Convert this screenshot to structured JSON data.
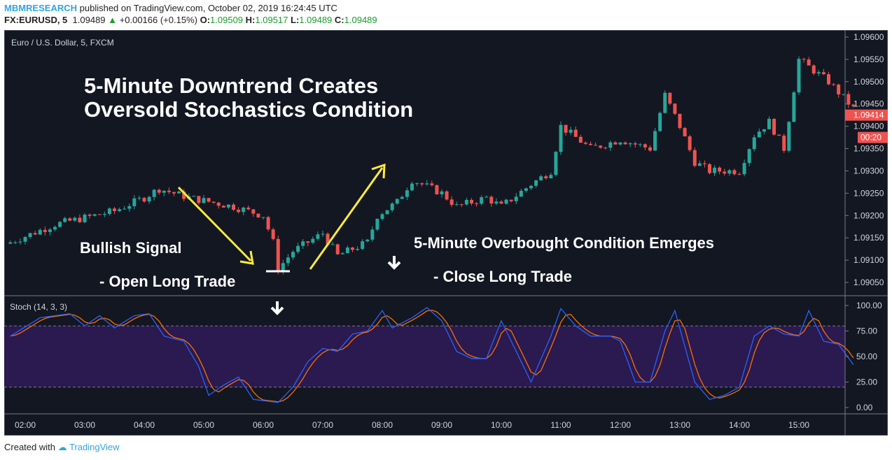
{
  "header": {
    "author": "MBMRESEARCH",
    "published": "published on TradingView.com, October 02, 2019 16:24:45 UTC",
    "symbol": "FX:EURUSD, 5",
    "last": "1.09489",
    "change": "+0.00166 (+0.15%)",
    "o_label": "O:",
    "o": "1.09509",
    "h_label": "H:",
    "h": "1.09517",
    "l_label": "L:",
    "l": "1.09489",
    "c_label": "C:",
    "c": "1.09489"
  },
  "pane_title": "Euro / U.S. Dollar, 5, FXCM",
  "stoch_title": "Stoch (14, 3, 3)",
  "annotations": {
    "title1": "5-Minute Downtrend Creates",
    "title2": "Oversold Stochastics Condition",
    "bullish": "Bullish Signal",
    "open": "- Open Long Trade",
    "overbought": "5-Minute Overbought Condition Emerges",
    "close": "- Close Long Trade"
  },
  "price_badge": "1.09414",
  "countdown": "00:20",
  "colors": {
    "up": "#26a69a",
    "down": "#ef5350",
    "k": "#2962ff",
    "d": "#ff6d00",
    "band": "#2a1a4f",
    "bg": "#131722",
    "arrow": "#ffeb3b"
  },
  "footer": {
    "created": "Created with",
    "brand": "TradingView"
  },
  "chart_data": [
    {
      "type": "candlestick",
      "price_ticks": [
        "1.09600",
        "1.09550",
        "1.09500",
        "1.09450",
        "1.09400",
        "1.09350",
        "1.09300",
        "1.09250",
        "1.09200",
        "1.09150",
        "1.09100",
        "1.09050"
      ],
      "ylim": [
        1.0902,
        1.0962
      ],
      "time_ticks": [
        "02:00",
        "03:00",
        "04:00",
        "05:00",
        "06:00",
        "07:00",
        "08:00",
        "09:00",
        "10:00",
        "11:00",
        "12:00",
        "13:00",
        "14:00",
        "15:00"
      ],
      "close_path": [
        [
          "01:45",
          1.0914
        ],
        [
          "02:30",
          1.0918
        ],
        [
          "03:30",
          1.0921
        ],
        [
          "04:00",
          1.0924
        ],
        [
          "04:15",
          1.0926
        ],
        [
          "04:45",
          1.0924
        ],
        [
          "05:30",
          1.0922
        ],
        [
          "06:00",
          1.092
        ],
        [
          "06:10",
          1.0914
        ],
        [
          "06:15",
          1.0908
        ],
        [
          "06:30",
          1.0912
        ],
        [
          "07:00",
          1.0916
        ],
        [
          "07:15",
          1.0911
        ],
        [
          "07:45",
          1.0914
        ],
        [
          "07:55",
          1.092
        ],
        [
          "08:15",
          1.0923
        ],
        [
          "08:30",
          1.0928
        ],
        [
          "09:00",
          1.0925
        ],
        [
          "09:15",
          1.0922
        ],
        [
          "09:45",
          1.0924
        ],
        [
          "10:00",
          1.0922
        ],
        [
          "10:30",
          1.0927
        ],
        [
          "10:50",
          1.093
        ],
        [
          "11:00",
          1.094
        ],
        [
          "11:30",
          1.0935
        ],
        [
          "12:00",
          1.0937
        ],
        [
          "12:30",
          1.0935
        ],
        [
          "12:45",
          1.0947
        ],
        [
          "13:00",
          1.094
        ],
        [
          "13:15",
          1.0932
        ],
        [
          "13:30",
          1.093
        ],
        [
          "14:00",
          1.093
        ],
        [
          "14:15",
          1.0938
        ],
        [
          "14:30",
          1.0941
        ],
        [
          "14:45",
          1.0935
        ],
        [
          "15:00",
          1.0955
        ],
        [
          "15:30",
          1.095
        ],
        [
          "15:55",
          1.0944
        ]
      ]
    },
    {
      "type": "line",
      "title": "Stoch (14, 3, 3)",
      "y_ticks": [
        "100.00",
        "75.00",
        "50.00",
        "25.00",
        "0.00"
      ],
      "ylim": [
        0,
        100
      ],
      "bands": [
        20,
        80
      ],
      "k_path": [
        [
          "01:45",
          70
        ],
        [
          "02:15",
          88
        ],
        [
          "02:45",
          92
        ],
        [
          "03:00",
          80
        ],
        [
          "03:15",
          90
        ],
        [
          "03:30",
          78
        ],
        [
          "03:50",
          90
        ],
        [
          "04:05",
          92
        ],
        [
          "04:20",
          70
        ],
        [
          "04:40",
          65
        ],
        [
          "04:55",
          40
        ],
        [
          "05:05",
          12
        ],
        [
          "05:20",
          22
        ],
        [
          "05:35",
          30
        ],
        [
          "05:50",
          8
        ],
        [
          "06:15",
          5
        ],
        [
          "06:30",
          20
        ],
        [
          "06:45",
          45
        ],
        [
          "07:00",
          58
        ],
        [
          "07:15",
          55
        ],
        [
          "07:30",
          72
        ],
        [
          "07:45",
          75
        ],
        [
          "08:00",
          95
        ],
        [
          "08:10",
          78
        ],
        [
          "08:30",
          88
        ],
        [
          "08:45",
          98
        ],
        [
          "09:00",
          85
        ],
        [
          "09:15",
          55
        ],
        [
          "09:30",
          48
        ],
        [
          "09:45",
          48
        ],
        [
          "10:00",
          85
        ],
        [
          "10:15",
          55
        ],
        [
          "10:30",
          25
        ],
        [
          "10:50",
          70
        ],
        [
          "11:00",
          97
        ],
        [
          "11:15",
          80
        ],
        [
          "11:30",
          70
        ],
        [
          "11:50",
          70
        ],
        [
          "12:00",
          65
        ],
        [
          "12:15",
          25
        ],
        [
          "12:30",
          25
        ],
        [
          "12:45",
          75
        ],
        [
          "12:55",
          95
        ],
        [
          "13:05",
          60
        ],
        [
          "13:15",
          25
        ],
        [
          "13:30",
          8
        ],
        [
          "13:45",
          12
        ],
        [
          "14:00",
          20
        ],
        [
          "14:15",
          70
        ],
        [
          "14:30",
          80
        ],
        [
          "14:45",
          72
        ],
        [
          "15:00",
          70
        ],
        [
          "15:10",
          95
        ],
        [
          "15:25",
          65
        ],
        [
          "15:40",
          62
        ],
        [
          "15:55",
          42
        ]
      ]
    }
  ]
}
